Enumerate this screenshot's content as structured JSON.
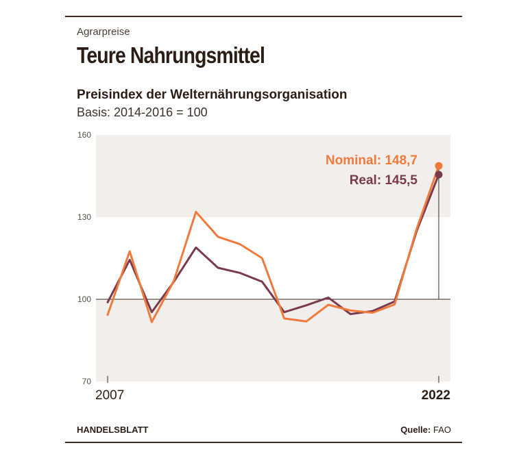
{
  "header": {
    "kicker": "Agrarpreise",
    "title": "Teure Nahrungsmittel",
    "subtitle": "Preisindex der Welternährungsorganisation",
    "basis": "Basis: 2014-2016 = 100"
  },
  "footer": {
    "brand": "HANDELSBLATT",
    "source_label": "Quelle:",
    "source_value": "FAO"
  },
  "chart_data": {
    "type": "line",
    "x": [
      2007,
      2008,
      2009,
      2010,
      2011,
      2012,
      2013,
      2014,
      2015,
      2016,
      2017,
      2018,
      2019,
      2020,
      2021,
      2022
    ],
    "x_tick_labels": [
      "2007",
      "2022"
    ],
    "y_ticks": [
      70,
      100,
      130,
      160
    ],
    "ylim": [
      70,
      160
    ],
    "baseline": 100,
    "shaded_bands": [
      [
        130,
        160
      ],
      [
        70,
        100
      ]
    ],
    "series": [
      {
        "name": "Nominal",
        "color": "#f07a3c",
        "values": [
          94.3,
          117.5,
          91.7,
          106.7,
          131.9,
          122.8,
          120.1,
          115.0,
          93.0,
          91.9,
          98.0,
          95.9,
          95.1,
          98.1,
          125.7,
          148.7
        ],
        "end_label": "Nominal: 148,7"
      },
      {
        "name": "Real",
        "color": "#7a3a4e",
        "values": [
          98.9,
          114.4,
          95.3,
          106.4,
          118.9,
          111.5,
          109.6,
          106.4,
          95.3,
          97.8,
          100.6,
          94.6,
          95.7,
          99.2,
          124.9,
          145.5
        ],
        "end_label": "Real: 145,5"
      }
    ],
    "colors": {
      "band": "#f1eeeb",
      "axis": "#3a2a20",
      "tick_text": "#5a4e48"
    }
  }
}
